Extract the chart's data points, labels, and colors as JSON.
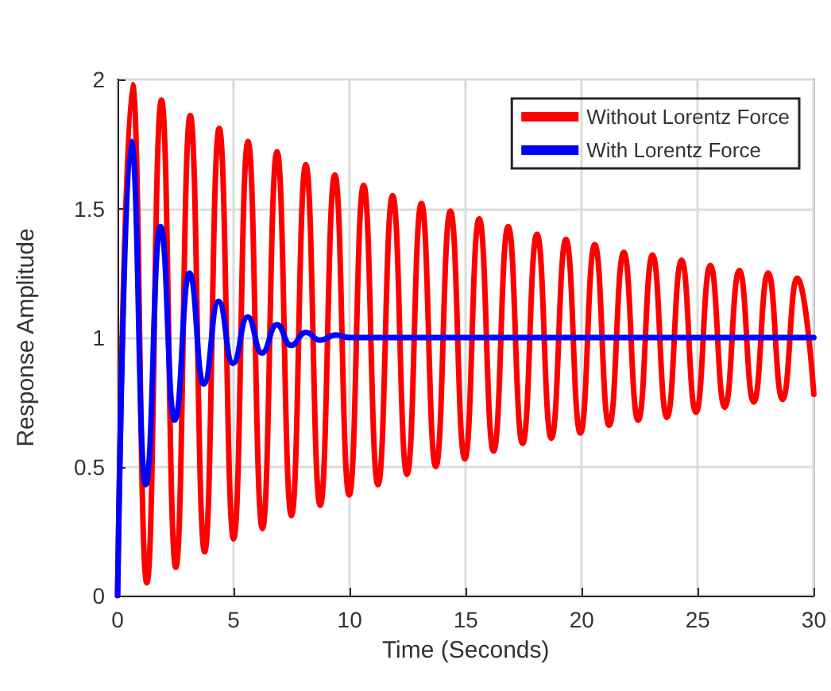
{
  "chart_data": {
    "type": "line",
    "xlabel": "Time (Seconds)",
    "ylabel": "Response Amplitude",
    "xlim": [
      0,
      30
    ],
    "xticks": [
      0,
      5,
      10,
      15,
      20,
      25,
      30
    ],
    "ylim": [
      0,
      2
    ],
    "yticks": [
      0,
      0.5,
      1,
      1.5,
      2
    ],
    "grid": true,
    "legend": "top right",
    "line_style": "solid",
    "marker": "none",
    "series": [
      {
        "name": "Without Lorentz Force",
        "color": "#ff0000",
        "x": [
          0,
          0.64,
          1.26,
          1.89,
          2.51,
          3.13,
          3.75,
          4.38,
          5.0,
          5.62,
          6.24,
          6.87,
          7.49,
          8.11,
          8.73,
          9.36,
          9.98,
          10.6,
          11.22,
          11.85,
          12.47,
          13.09,
          13.71,
          14.34,
          14.96,
          15.58,
          16.2,
          16.83,
          17.45,
          18.07,
          18.69,
          19.32,
          19.94,
          20.56,
          21.18,
          21.81,
          22.43,
          23.05,
          23.67,
          24.3,
          24.92,
          25.54,
          26.16,
          26.79,
          27.41,
          28.03,
          28.65,
          29.28,
          30
        ],
        "values": [
          0,
          1.98,
          0.05,
          1.92,
          0.11,
          1.86,
          0.17,
          1.81,
          0.22,
          1.76,
          0.26,
          1.72,
          0.31,
          1.67,
          0.35,
          1.63,
          0.39,
          1.59,
          0.43,
          1.55,
          0.47,
          1.52,
          0.5,
          1.49,
          0.53,
          1.46,
          0.56,
          1.43,
          0.59,
          1.4,
          0.61,
          1.38,
          0.63,
          1.36,
          0.66,
          1.33,
          0.68,
          1.32,
          0.69,
          1.3,
          0.71,
          1.28,
          0.73,
          1.26,
          0.75,
          1.25,
          0.76,
          1.23,
          0.78
        ]
      },
      {
        "name": "With Lorentz Force",
        "color": "#0000ff",
        "x": [
          0,
          0.59,
          1.21,
          1.85,
          2.46,
          3.1,
          3.71,
          4.35,
          4.97,
          5.6,
          6.22,
          6.86,
          7.47,
          8.11,
          8.72,
          9.4,
          10,
          30
        ],
        "values": [
          0,
          1.76,
          0.43,
          1.43,
          0.68,
          1.25,
          0.82,
          1.14,
          0.9,
          1.08,
          0.94,
          1.05,
          0.97,
          1.02,
          0.99,
          1.01,
          1,
          1
        ]
      }
    ]
  }
}
